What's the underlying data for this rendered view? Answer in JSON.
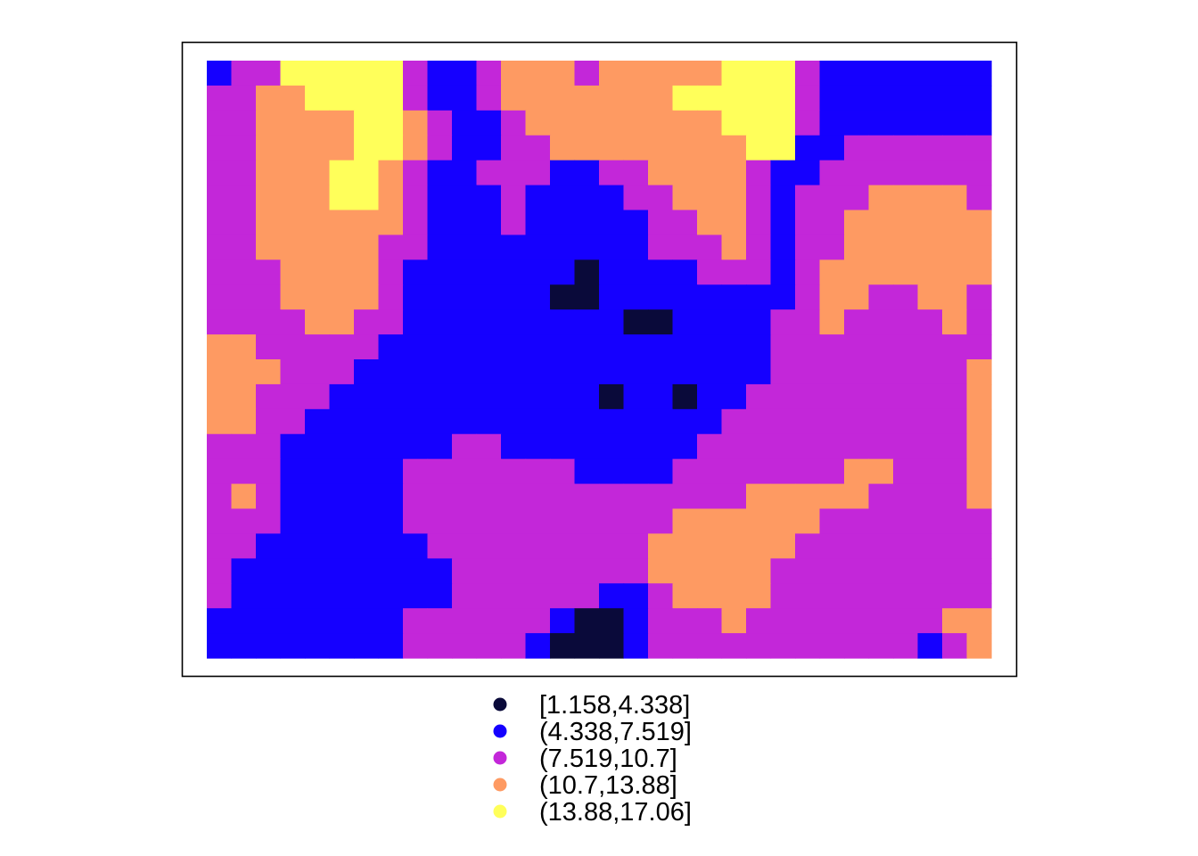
{
  "chart_data": {
    "type": "heatmap",
    "title": "",
    "xlabel": "",
    "ylabel": "",
    "grid": false,
    "axes_shown": false,
    "legend_placement": "bottom",
    "legend": [
      {
        "label": "[1.158,4.338]",
        "color": "#0a0a3a"
      },
      {
        "label": "(4.338,7.519]",
        "color": "#1500ff"
      },
      {
        "label": "(7.519,10.7]",
        "color": "#c327d9"
      },
      {
        "label": "(10.7,13.88]",
        "color": "#fe9a62"
      },
      {
        "label": "(13.88,17.06]",
        "color": "#ffff5a"
      }
    ],
    "class_breaks": [
      1.158,
      4.338,
      7.519,
      10.7,
      13.88,
      17.06
    ],
    "grid_cols": 32,
    "grid_rows": 24,
    "note_grid": "class index per cell (0..4), row-major from top",
    "cells": [
      [
        1,
        2,
        2,
        4,
        4,
        4,
        4,
        4,
        2,
        1,
        1,
        2,
        3,
        3,
        3,
        2,
        3,
        3,
        3,
        3,
        3,
        4,
        4,
        4,
        2,
        1,
        1,
        1,
        1,
        1,
        1,
        1
      ],
      [
        2,
        2,
        3,
        3,
        4,
        4,
        4,
        4,
        2,
        1,
        1,
        2,
        3,
        3,
        3,
        3,
        3,
        3,
        3,
        4,
        4,
        4,
        4,
        4,
        2,
        1,
        1,
        1,
        1,
        1,
        1,
        1
      ],
      [
        2,
        2,
        3,
        3,
        3,
        3,
        4,
        4,
        3,
        2,
        1,
        1,
        2,
        3,
        3,
        3,
        3,
        3,
        3,
        3,
        3,
        4,
        4,
        4,
        2,
        1,
        1,
        1,
        1,
        1,
        1,
        1
      ],
      [
        2,
        2,
        3,
        3,
        3,
        3,
        4,
        4,
        3,
        2,
        1,
        1,
        2,
        2,
        3,
        3,
        3,
        3,
        3,
        3,
        3,
        3,
        4,
        4,
        1,
        1,
        2,
        2,
        2,
        2,
        2,
        2
      ],
      [
        2,
        2,
        3,
        3,
        3,
        4,
        4,
        3,
        2,
        1,
        1,
        2,
        2,
        2,
        1,
        1,
        2,
        2,
        3,
        3,
        3,
        3,
        2,
        1,
        1,
        2,
        2,
        2,
        2,
        2,
        2,
        2
      ],
      [
        2,
        2,
        3,
        3,
        3,
        4,
        4,
        3,
        2,
        1,
        1,
        1,
        2,
        1,
        1,
        1,
        1,
        2,
        2,
        3,
        3,
        3,
        2,
        1,
        2,
        2,
        2,
        3,
        3,
        3,
        3,
        2
      ],
      [
        2,
        2,
        3,
        3,
        3,
        3,
        3,
        3,
        2,
        1,
        1,
        1,
        2,
        1,
        1,
        1,
        1,
        1,
        2,
        2,
        3,
        3,
        2,
        1,
        2,
        2,
        3,
        3,
        3,
        3,
        3,
        3
      ],
      [
        2,
        2,
        3,
        3,
        3,
        3,
        3,
        2,
        2,
        1,
        1,
        1,
        1,
        1,
        1,
        1,
        1,
        1,
        2,
        2,
        2,
        3,
        2,
        1,
        2,
        2,
        3,
        3,
        3,
        3,
        3,
        3
      ],
      [
        2,
        2,
        2,
        3,
        3,
        3,
        3,
        2,
        1,
        1,
        1,
        1,
        1,
        1,
        1,
        0,
        1,
        1,
        1,
        1,
        2,
        2,
        2,
        1,
        2,
        3,
        3,
        3,
        3,
        3,
        3,
        3
      ],
      [
        2,
        2,
        2,
        3,
        3,
        3,
        3,
        2,
        1,
        1,
        1,
        1,
        1,
        1,
        0,
        0,
        1,
        1,
        1,
        1,
        1,
        1,
        1,
        1,
        2,
        3,
        3,
        2,
        2,
        3,
        3,
        2
      ],
      [
        2,
        2,
        2,
        2,
        3,
        3,
        2,
        2,
        1,
        1,
        1,
        1,
        1,
        1,
        1,
        1,
        1,
        0,
        0,
        1,
        1,
        1,
        1,
        2,
        2,
        3,
        2,
        2,
        2,
        2,
        3,
        2
      ],
      [
        3,
        3,
        2,
        2,
        2,
        2,
        2,
        1,
        1,
        1,
        1,
        1,
        1,
        1,
        1,
        1,
        1,
        1,
        1,
        1,
        1,
        1,
        1,
        2,
        2,
        2,
        2,
        2,
        2,
        2,
        2,
        2
      ],
      [
        3,
        3,
        3,
        2,
        2,
        2,
        1,
        1,
        1,
        1,
        1,
        1,
        1,
        1,
        1,
        1,
        1,
        1,
        1,
        1,
        1,
        1,
        1,
        2,
        2,
        2,
        2,
        2,
        2,
        2,
        2,
        3
      ],
      [
        3,
        3,
        2,
        2,
        2,
        1,
        1,
        1,
        1,
        1,
        1,
        1,
        1,
        1,
        1,
        1,
        0,
        1,
        1,
        0,
        1,
        1,
        2,
        2,
        2,
        2,
        2,
        2,
        2,
        2,
        2,
        3
      ],
      [
        3,
        3,
        2,
        2,
        1,
        1,
        1,
        1,
        1,
        1,
        1,
        1,
        1,
        1,
        1,
        1,
        1,
        1,
        1,
        1,
        1,
        2,
        2,
        2,
        2,
        2,
        2,
        2,
        2,
        2,
        2,
        3
      ],
      [
        2,
        2,
        2,
        1,
        1,
        1,
        1,
        1,
        1,
        1,
        2,
        2,
        1,
        1,
        1,
        1,
        1,
        1,
        1,
        1,
        2,
        2,
        2,
        2,
        2,
        2,
        2,
        2,
        2,
        2,
        2,
        3
      ],
      [
        2,
        2,
        2,
        1,
        1,
        1,
        1,
        1,
        2,
        2,
        2,
        2,
        2,
        2,
        2,
        1,
        1,
        1,
        1,
        2,
        2,
        2,
        2,
        2,
        2,
        2,
        3,
        3,
        2,
        2,
        2,
        3
      ],
      [
        2,
        3,
        2,
        1,
        1,
        1,
        1,
        1,
        2,
        2,
        2,
        2,
        2,
        2,
        2,
        2,
        2,
        2,
        2,
        2,
        2,
        2,
        3,
        3,
        3,
        3,
        3,
        2,
        2,
        2,
        2,
        3
      ],
      [
        2,
        2,
        2,
        1,
        1,
        1,
        1,
        1,
        2,
        2,
        2,
        2,
        2,
        2,
        2,
        2,
        2,
        2,
        2,
        3,
        3,
        3,
        3,
        3,
        3,
        2,
        2,
        2,
        2,
        2,
        2,
        2
      ],
      [
        2,
        2,
        1,
        1,
        1,
        1,
        1,
        1,
        1,
        2,
        2,
        2,
        2,
        2,
        2,
        2,
        2,
        2,
        3,
        3,
        3,
        3,
        3,
        3,
        2,
        2,
        2,
        2,
        2,
        2,
        2,
        2
      ],
      [
        2,
        1,
        1,
        1,
        1,
        1,
        1,
        1,
        1,
        1,
        2,
        2,
        2,
        2,
        2,
        2,
        2,
        2,
        3,
        3,
        3,
        3,
        3,
        2,
        2,
        2,
        2,
        2,
        2,
        2,
        2,
        2
      ],
      [
        2,
        1,
        1,
        1,
        1,
        1,
        1,
        1,
        1,
        1,
        2,
        2,
        2,
        2,
        2,
        2,
        1,
        1,
        2,
        3,
        3,
        3,
        3,
        2,
        2,
        2,
        2,
        2,
        2,
        2,
        2,
        2
      ],
      [
        1,
        1,
        1,
        1,
        1,
        1,
        1,
        1,
        2,
        2,
        2,
        2,
        2,
        2,
        1,
        0,
        0,
        1,
        2,
        2,
        2,
        3,
        2,
        2,
        2,
        2,
        2,
        2,
        2,
        2,
        3,
        3
      ],
      [
        1,
        1,
        1,
        1,
        1,
        1,
        1,
        1,
        2,
        2,
        2,
        2,
        2,
        1,
        0,
        0,
        0,
        1,
        2,
        2,
        2,
        2,
        2,
        2,
        2,
        2,
        2,
        2,
        2,
        1,
        2,
        3
      ]
    ]
  }
}
